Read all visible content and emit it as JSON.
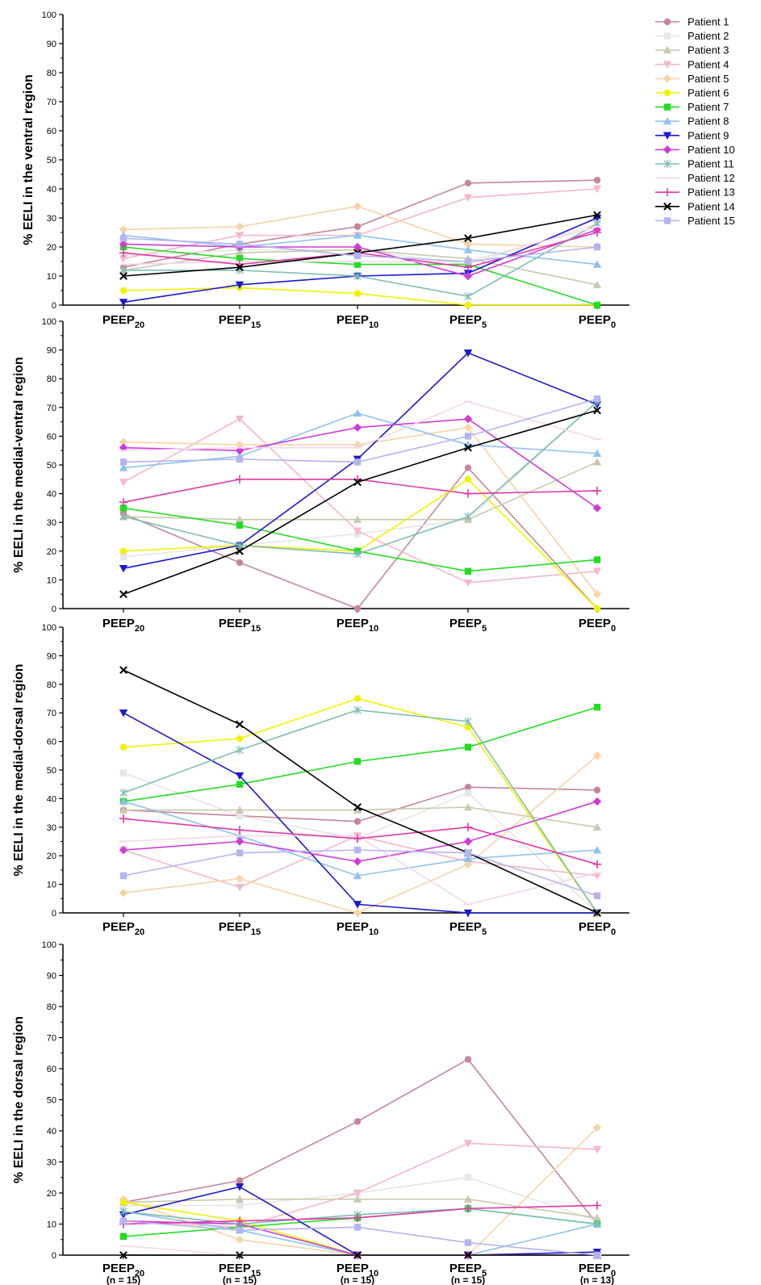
{
  "chart_data": [
    {
      "type": "line",
      "panel": "ventral",
      "ylabel": "% EELI in the ventral region",
      "ylim": [
        0,
        100
      ],
      "yticks": [
        0,
        10,
        20,
        30,
        40,
        50,
        60,
        70,
        80,
        90,
        100
      ],
      "categories": [
        {
          "base": "PEEP",
          "sub": "20"
        },
        {
          "base": "PEEP",
          "sub": "15"
        },
        {
          "base": "PEEP",
          "sub": "10"
        },
        {
          "base": "PEEP",
          "sub": "5"
        },
        {
          "base": "PEEP",
          "sub": "0"
        }
      ],
      "series": [
        {
          "name": "Patient 1",
          "values": [
            13,
            21,
            27,
            42,
            43
          ]
        },
        {
          "name": "Patient 2",
          "values": [
            17,
            19,
            19,
            14,
            28
          ]
        },
        {
          "name": "Patient 3",
          "values": [
            12,
            18,
            19,
            16,
            7
          ]
        },
        {
          "name": "Patient 4",
          "values": [
            16,
            24,
            24,
            37,
            40
          ]
        },
        {
          "name": "Patient 5",
          "values": [
            26,
            27,
            34,
            21,
            20
          ]
        },
        {
          "name": "Patient 6",
          "values": [
            5,
            6,
            4,
            0,
            0
          ]
        },
        {
          "name": "Patient 7",
          "values": [
            20,
            16,
            14,
            14,
            0
          ]
        },
        {
          "name": "Patient 8",
          "values": [
            24,
            20,
            24,
            19,
            14
          ]
        },
        {
          "name": "Patient 9",
          "values": [
            1,
            7,
            10,
            11,
            30
          ]
        },
        {
          "name": "Patient 10",
          "values": [
            21,
            20,
            20,
            10,
            26
          ]
        },
        {
          "name": "Patient 11",
          "values": [
            12,
            12,
            10,
            3,
            28
          ]
        },
        {
          "name": "Patient 12",
          "values": [
            14,
            15,
            15,
            15,
            27
          ]
        },
        {
          "name": "Patient 13",
          "values": [
            18,
            14,
            18,
            13,
            25
          ]
        },
        {
          "name": "Patient 14",
          "values": [
            10,
            13,
            18,
            23,
            31
          ]
        },
        {
          "name": "Patient 15",
          "values": [
            23,
            21,
            17,
            15,
            20
          ]
        }
      ]
    },
    {
      "type": "line",
      "panel": "medial-ventral",
      "ylabel": "% EELI in the medial-ventral region",
      "ylim": [
        0,
        100
      ],
      "yticks": [
        0,
        10,
        20,
        30,
        40,
        50,
        60,
        70,
        80,
        90,
        100
      ],
      "categories": [
        {
          "base": "PEEP",
          "sub": "20"
        },
        {
          "base": "PEEP",
          "sub": "15"
        },
        {
          "base": "PEEP",
          "sub": "10"
        },
        {
          "base": "PEEP",
          "sub": "5"
        },
        {
          "base": "PEEP",
          "sub": "0"
        }
      ],
      "series": [
        {
          "name": "Patient 1",
          "values": [
            33,
            16,
            0,
            49,
            0
          ]
        },
        {
          "name": "Patient 2",
          "values": [
            18,
            22,
            26,
            31,
            72
          ]
        },
        {
          "name": "Patient 3",
          "values": [
            32,
            31,
            31,
            31,
            51
          ]
        },
        {
          "name": "Patient 4",
          "values": [
            44,
            66,
            27,
            9,
            13
          ]
        },
        {
          "name": "Patient 5",
          "values": [
            58,
            57,
            57,
            63,
            5
          ]
        },
        {
          "name": "Patient 6",
          "values": [
            20,
            22,
            20,
            45,
            0
          ]
        },
        {
          "name": "Patient 7",
          "values": [
            35,
            29,
            20,
            13,
            17
          ]
        },
        {
          "name": "Patient 8",
          "values": [
            49,
            53,
            68,
            57,
            54
          ]
        },
        {
          "name": "Patient 9",
          "values": [
            14,
            22,
            52,
            89,
            71
          ]
        },
        {
          "name": "Patient 10",
          "values": [
            56,
            55,
            63,
            66,
            35
          ]
        },
        {
          "name": "Patient 11",
          "values": [
            32,
            22,
            19,
            32,
            72
          ]
        },
        {
          "name": "Patient 12",
          "values": [
            55,
            56,
            56,
            72,
            59
          ]
        },
        {
          "name": "Patient 13",
          "values": [
            37,
            45,
            45,
            40,
            41
          ]
        },
        {
          "name": "Patient 14",
          "values": [
            5,
            20,
            44,
            56,
            69
          ]
        },
        {
          "name": "Patient 15",
          "values": [
            51,
            52,
            51,
            60,
            73
          ]
        }
      ]
    },
    {
      "type": "line",
      "panel": "medial-dorsal",
      "ylabel": "% EELI in the medial-dorsal region",
      "ylim": [
        0,
        100
      ],
      "yticks": [
        0,
        10,
        20,
        30,
        40,
        50,
        60,
        70,
        80,
        90,
        100
      ],
      "categories": [
        {
          "base": "PEEP",
          "sub": "20"
        },
        {
          "base": "PEEP",
          "sub": "15"
        },
        {
          "base": "PEEP",
          "sub": "10"
        },
        {
          "base": "PEEP",
          "sub": "5"
        },
        {
          "base": "PEEP",
          "sub": "0"
        }
      ],
      "series": [
        {
          "name": "Patient 1",
          "values": [
            36,
            34,
            32,
            44,
            43
          ]
        },
        {
          "name": "Patient 2",
          "values": [
            49,
            34,
            26,
            42,
            0
          ]
        },
        {
          "name": "Patient 3",
          "values": [
            36,
            36,
            36,
            37,
            30
          ]
        },
        {
          "name": "Patient 4",
          "values": [
            22,
            9,
            27,
            18,
            13
          ]
        },
        {
          "name": "Patient 5",
          "values": [
            7,
            12,
            0,
            17,
            55
          ]
        },
        {
          "name": "Patient 6",
          "values": [
            58,
            61,
            75,
            65,
            0
          ]
        },
        {
          "name": "Patient 7",
          "values": [
            39,
            45,
            53,
            58,
            72
          ]
        },
        {
          "name": "Patient 8",
          "values": [
            39,
            27,
            13,
            19,
            22
          ]
        },
        {
          "name": "Patient 9",
          "values": [
            70,
            48,
            3,
            0,
            0
          ]
        },
        {
          "name": "Patient 10",
          "values": [
            22,
            25,
            18,
            25,
            39
          ]
        },
        {
          "name": "Patient 11",
          "values": [
            42,
            57,
            71,
            67,
            0
          ]
        },
        {
          "name": "Patient 12",
          "values": [
            25,
            27,
            27,
            3,
            14
          ]
        },
        {
          "name": "Patient 13",
          "values": [
            33,
            29,
            26,
            30,
            17
          ]
        },
        {
          "name": "Patient 14",
          "values": [
            85,
            66,
            37,
            21,
            0
          ]
        },
        {
          "name": "Patient 15",
          "values": [
            13,
            21,
            22,
            21,
            6
          ]
        }
      ]
    },
    {
      "type": "line",
      "panel": "dorsal",
      "ylabel": "% EELI in the dorsal region",
      "ylim": [
        0,
        100
      ],
      "yticks": [
        0,
        10,
        20,
        30,
        40,
        50,
        60,
        70,
        80,
        90,
        100
      ],
      "categories": [
        {
          "base": "PEEP",
          "sub": "20",
          "n": "(n = 15)"
        },
        {
          "base": "PEEP",
          "sub": "15",
          "n": "(n = 15)"
        },
        {
          "base": "PEEP",
          "sub": "10",
          "n": "(n = 15)"
        },
        {
          "base": "PEEP",
          "sub": "5",
          "n": "(n = 15)"
        },
        {
          "base": "PEEP",
          "sub": "0",
          "n": "(n = 13)"
        }
      ],
      "series": [
        {
          "name": "Patient 1",
          "values": [
            17,
            24,
            43,
            63,
            10
          ]
        },
        {
          "name": "Patient 2",
          "values": [
            16,
            16,
            20,
            25,
            11
          ]
        },
        {
          "name": "Patient 3",
          "values": [
            17,
            18,
            18,
            18,
            12
          ]
        },
        {
          "name": "Patient 4",
          "values": [
            11,
            9,
            20,
            36,
            34
          ]
        },
        {
          "name": "Patient 5",
          "values": [
            18,
            5,
            0,
            0,
            41
          ]
        },
        {
          "name": "Patient 6",
          "values": [
            17,
            11,
            0,
            0,
            0
          ]
        },
        {
          "name": "Patient 7",
          "values": [
            6,
            9,
            12,
            15,
            10
          ]
        },
        {
          "name": "Patient 8",
          "values": [
            14,
            8,
            0,
            0,
            10
          ]
        },
        {
          "name": "Patient 9",
          "values": [
            13,
            22,
            0,
            0,
            1
          ]
        },
        {
          "name": "Patient 10",
          "values": [
            11,
            10,
            0,
            0,
            0
          ]
        },
        {
          "name": "Patient 11",
          "values": [
            14,
            10,
            13,
            15,
            10
          ]
        },
        {
          "name": "Patient 12",
          "values": [
            3,
            0,
            0,
            0,
            0
          ]
        },
        {
          "name": "Patient 13",
          "values": [
            10,
            11,
            12,
            15,
            16
          ]
        },
        {
          "name": "Patient 14",
          "values": [
            0,
            0,
            0,
            0,
            0
          ]
        },
        {
          "name": "Patient 15",
          "values": [
            11,
            8,
            9,
            4,
            0
          ]
        }
      ]
    }
  ],
  "legend": {
    "placement": "top-right",
    "entries": [
      {
        "name": "Patient 1",
        "color": "#c48799",
        "marker": "circle"
      },
      {
        "name": "Patient 2",
        "color": "#e6e6e6",
        "marker": "square"
      },
      {
        "name": "Patient 3",
        "color": "#c9c9ae",
        "marker": "triangle"
      },
      {
        "name": "Patient 4",
        "color": "#f4b9c5",
        "marker": "triangle-down"
      },
      {
        "name": "Patient 5",
        "color": "#f7d3a8",
        "marker": "diamond"
      },
      {
        "name": "Patient 6",
        "color": "#f2f200",
        "marker": "circle"
      },
      {
        "name": "Patient 7",
        "color": "#22dd22",
        "marker": "square"
      },
      {
        "name": "Patient 8",
        "color": "#8ec2ee",
        "marker": "triangle"
      },
      {
        "name": "Patient 9",
        "color": "#1a1acd",
        "marker": "triangle-down"
      },
      {
        "name": "Patient 10",
        "color": "#cf3ad6",
        "marker": "diamond"
      },
      {
        "name": "Patient 11",
        "color": "#7dbdb4",
        "marker": "asterisk"
      },
      {
        "name": "Patient 12",
        "color": "#f5d7ea",
        "marker": "dash"
      },
      {
        "name": "Patient 13",
        "color": "#de3aa6",
        "marker": "plus"
      },
      {
        "name": "Patient 14",
        "color": "#000000",
        "marker": "x"
      },
      {
        "name": "Patient 15",
        "color": "#b3b5ef",
        "marker": "square"
      }
    ]
  }
}
